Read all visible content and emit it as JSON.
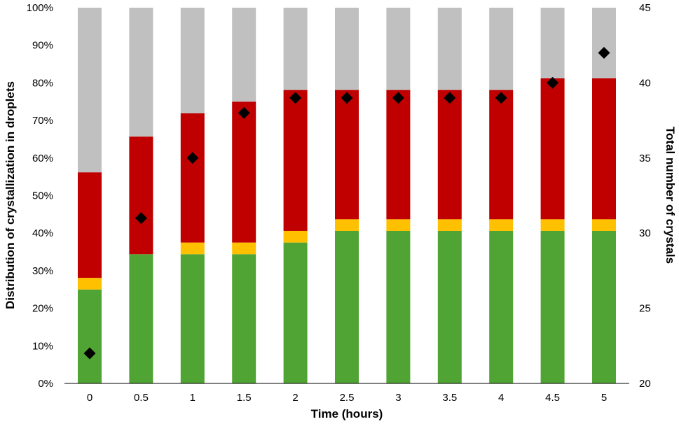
{
  "chart_data": {
    "type": "bar",
    "stacked": true,
    "categories": [
      "0",
      "0.5",
      "1",
      "1.5",
      "2",
      "2.5",
      "3",
      "3.5",
      "4",
      "4.5",
      "5"
    ],
    "series": [
      {
        "color": "#4fa434",
        "values": [
          25.0,
          34.4,
          34.4,
          34.4,
          37.5,
          40.6,
          40.6,
          40.6,
          40.6,
          40.6,
          40.6
        ]
      },
      {
        "color": "#ffc000",
        "values": [
          3.1,
          0,
          3.1,
          3.1,
          3.1,
          3.1,
          3.1,
          3.1,
          3.1,
          3.1,
          3.1
        ]
      },
      {
        "color": "#c00000",
        "values": [
          28.1,
          31.3,
          34.4,
          37.5,
          37.5,
          34.4,
          34.4,
          34.4,
          34.4,
          37.5,
          37.5
        ]
      },
      {
        "color": "#c0c0c0",
        "values": [
          43.8,
          34.3,
          28.1,
          25.0,
          21.9,
          21.9,
          21.9,
          21.9,
          21.9,
          18.8,
          18.8
        ]
      }
    ],
    "secondary_series": {
      "type": "scatter",
      "marker": "diamond",
      "color": "#000000",
      "values": [
        22,
        31,
        35,
        38,
        39,
        39,
        39,
        39,
        39,
        40,
        42
      ]
    },
    "xlabel": "Time (hours)",
    "ylabel": "Distribution of crystallization in droplets",
    "y2label": "Total number of crystals",
    "ylim": [
      0,
      100
    ],
    "y2lim": [
      20,
      45
    ],
    "yticks": [
      "0%",
      "10%",
      "20%",
      "30%",
      "40%",
      "50%",
      "60%",
      "70%",
      "80%",
      "90%",
      "100%"
    ],
    "y2ticks": [
      "20",
      "25",
      "30",
      "35",
      "40",
      "45"
    ],
    "grid": false,
    "legend": "none"
  }
}
